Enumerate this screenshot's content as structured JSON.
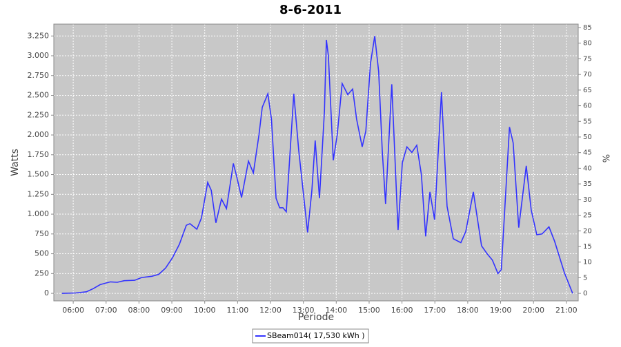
{
  "chart_data": {
    "type": "line",
    "title": "8-6-2011",
    "x_label": "Période",
    "y_label": "Watts",
    "y2_label": "%",
    "xlim": [
      5.41,
      21.36
    ],
    "xticks": [
      {
        "value": 6,
        "label": "06:00"
      },
      {
        "value": 7,
        "label": "07:00"
      },
      {
        "value": 8,
        "label": "08:00"
      },
      {
        "value": 9,
        "label": "09:00"
      },
      {
        "value": 10,
        "label": "10:00"
      },
      {
        "value": 11,
        "label": "11:00"
      },
      {
        "value": 12,
        "label": "12:00"
      },
      {
        "value": 13,
        "label": "13:00"
      },
      {
        "value": 14,
        "label": "14:00"
      },
      {
        "value": 15,
        "label": "15:00"
      },
      {
        "value": 16,
        "label": "16:00"
      },
      {
        "value": 17,
        "label": "17:00"
      },
      {
        "value": 18,
        "label": "18:00"
      },
      {
        "value": 19,
        "label": "19:00"
      },
      {
        "value": 20,
        "label": "20:00"
      },
      {
        "value": 21,
        "label": "21:00"
      }
    ],
    "ylim": [
      -95,
      3400
    ],
    "yticks": [
      0,
      250,
      500,
      750,
      {
        "value": 1000,
        "label": "1.000"
      },
      {
        "value": 1250,
        "label": "1.250"
      },
      {
        "value": 1500,
        "label": "1.500"
      },
      {
        "value": 1750,
        "label": "1.750"
      },
      {
        "value": 2000,
        "label": "2.000"
      },
      {
        "value": 2250,
        "label": "2.250"
      },
      {
        "value": 2500,
        "label": "2.500"
      },
      {
        "value": 2750,
        "label": "2.750"
      },
      {
        "value": 3000,
        "label": "3.000"
      },
      {
        "value": 3250,
        "label": "3.250"
      }
    ],
    "y2lim": [
      -2.4,
      86.1
    ],
    "y2ticks": [
      0,
      5,
      10,
      15,
      20,
      25,
      30,
      35,
      40,
      45,
      50,
      55,
      60,
      65,
      70,
      75,
      80,
      85
    ],
    "grid": true,
    "x": [
      5.66,
      6.08,
      6.4,
      6.61,
      6.82,
      7.13,
      7.34,
      7.55,
      7.87,
      8.08,
      8.39,
      8.6,
      8.81,
      9.02,
      9.23,
      9.44,
      9.55,
      9.76,
      9.9,
      10.09,
      10.2,
      10.34,
      10.51,
      10.66,
      10.87,
      10.97,
      11.12,
      11.33,
      11.48,
      11.65,
      11.75,
      11.92,
      12.03,
      12.17,
      12.28,
      12.38,
      12.48,
      12.71,
      12.86,
      13.13,
      13.26,
      13.36,
      13.49,
      13.64,
      13.7,
      13.76,
      13.91,
      14.03,
      14.18,
      14.35,
      14.5,
      14.62,
      14.79,
      14.9,
      15.04,
      15.17,
      15.29,
      15.4,
      15.5,
      15.69,
      15.88,
      16.01,
      16.15,
      16.3,
      16.45,
      16.59,
      16.72,
      16.85,
      16.99,
      17.2,
      17.37,
      17.56,
      17.79,
      17.94,
      18.17,
      18.42,
      18.59,
      18.75,
      18.92,
      19.02,
      19.27,
      19.38,
      19.55,
      19.78,
      19.93,
      20.1,
      20.26,
      20.47,
      20.64,
      20.94,
      21.19
    ],
    "series": [
      {
        "name": "SBeam014( 17,530 kWh )",
        "color": "#3333ff",
        "values": [
          0,
          5,
          20,
          60,
          110,
          145,
          140,
          160,
          165,
          200,
          215,
          240,
          320,
          450,
          620,
          860,
          880,
          810,
          950,
          1400,
          1300,
          890,
          1190,
          1070,
          1640,
          1480,
          1210,
          1670,
          1520,
          2000,
          2350,
          2520,
          2200,
          1200,
          1080,
          1080,
          1030,
          2520,
          1800,
          770,
          1300,
          1930,
          1200,
          2300,
          3200,
          3000,
          1680,
          2000,
          2650,
          2510,
          2580,
          2200,
          1850,
          2050,
          2900,
          3250,
          2800,
          1800,
          1130,
          2640,
          800,
          1650,
          1850,
          1780,
          1870,
          1500,
          720,
          1280,
          930,
          2540,
          1100,
          690,
          640,
          780,
          1280,
          600,
          500,
          420,
          250,
          300,
          2100,
          1900,
          830,
          1610,
          1050,
          740,
          750,
          840,
          660,
          260,
          0
        ]
      }
    ]
  }
}
